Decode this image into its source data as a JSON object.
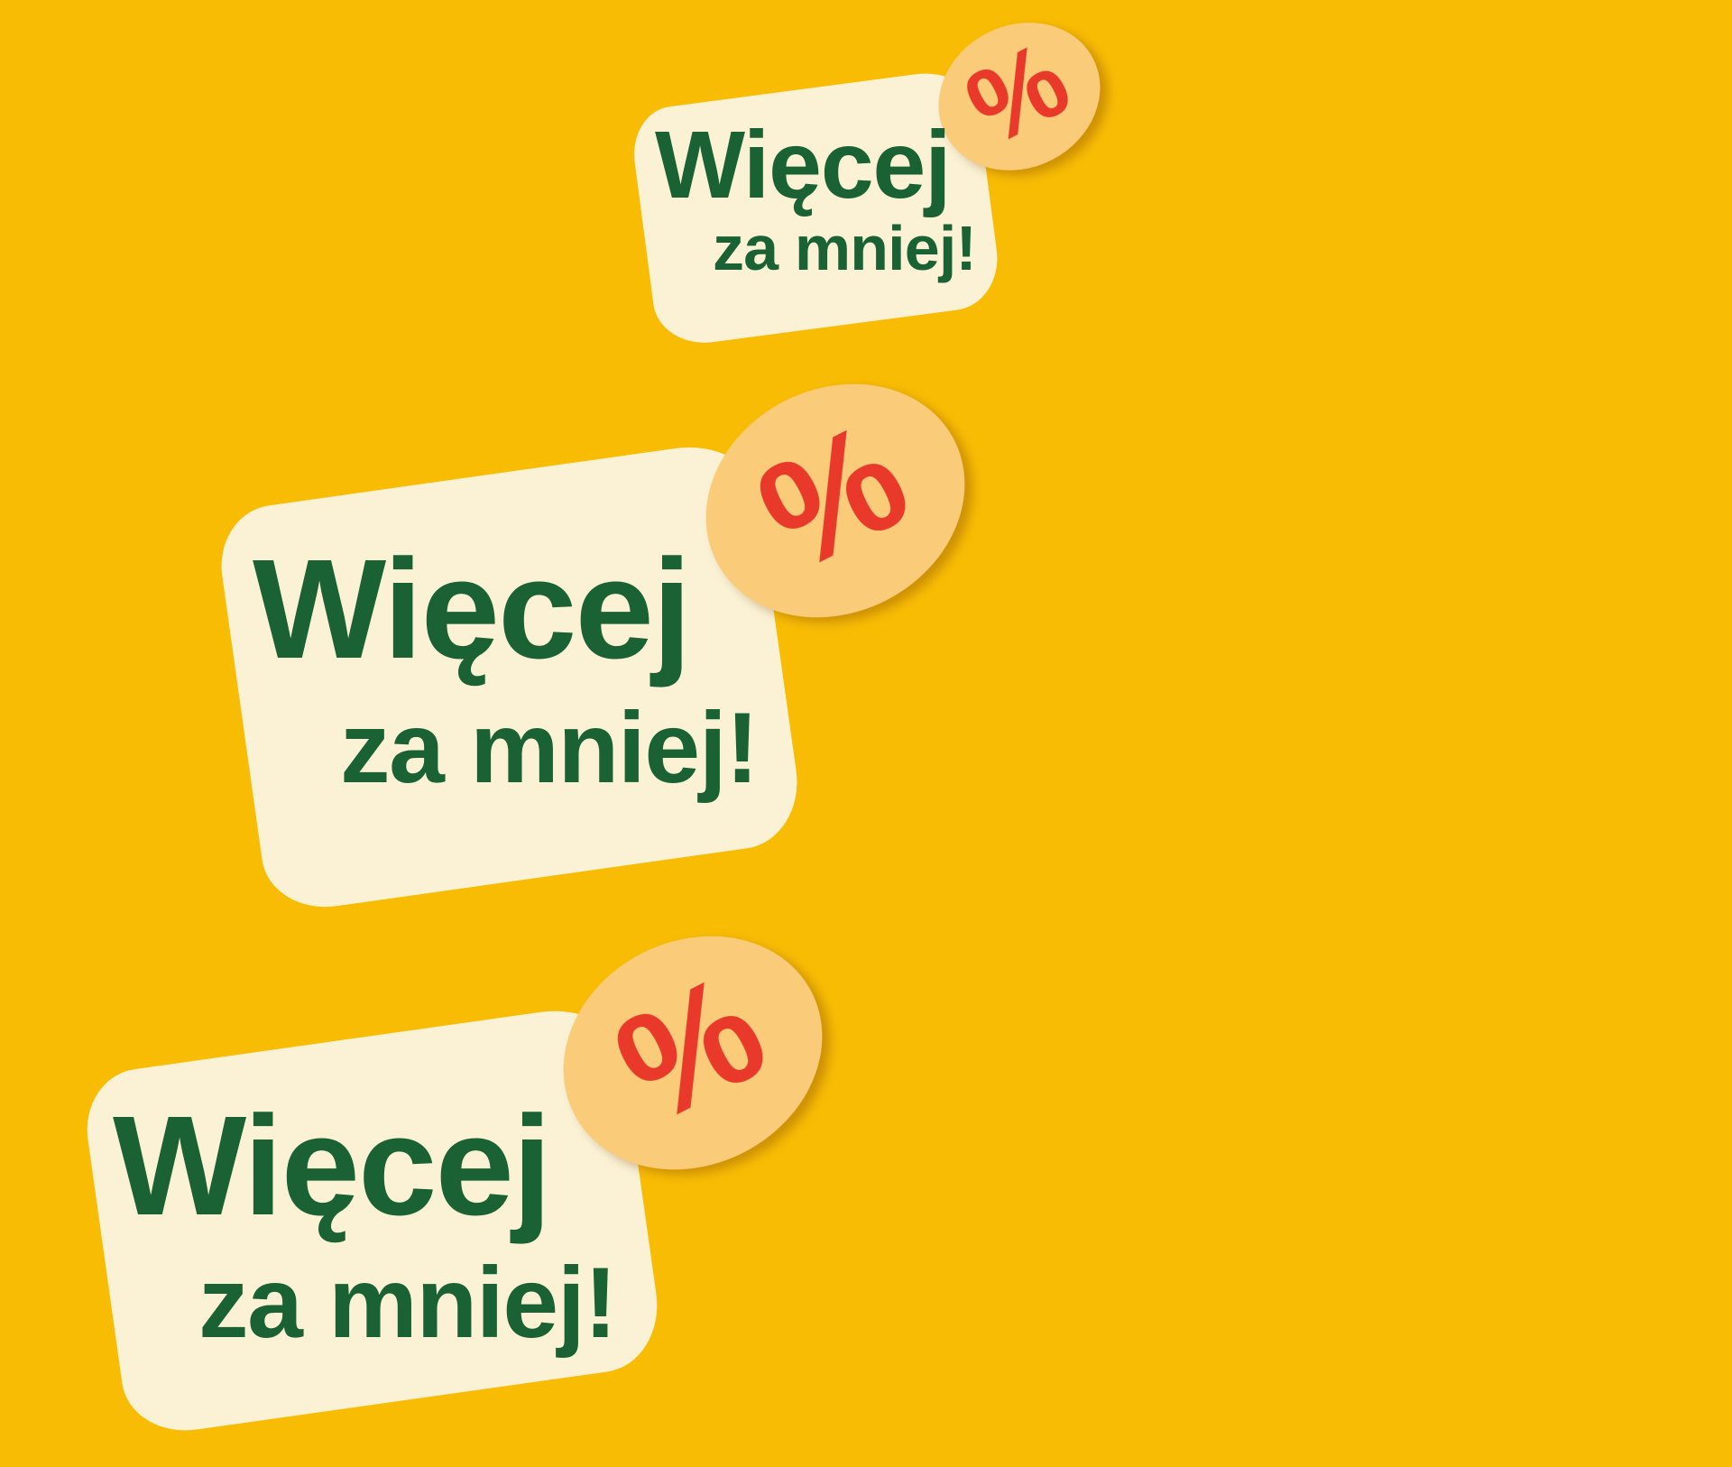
{
  "page": {
    "background_color": "#F9BC04"
  },
  "palette": {
    "plate_color": "#FBF2D6",
    "text_color": "#1A6233",
    "bubble_color": "#FACB79",
    "percent_color": "#E8392A"
  },
  "badges": [
    {
      "id": "promo-small",
      "line1": "Więcej",
      "line2": "za mniej!",
      "percent": "%"
    },
    {
      "id": "promo-medium",
      "line1": "Więcej",
      "line2": "za mniej!",
      "percent": "%"
    },
    {
      "id": "promo-large",
      "line1": "Więcej",
      "line2": "za mniej!",
      "percent": "%"
    }
  ]
}
